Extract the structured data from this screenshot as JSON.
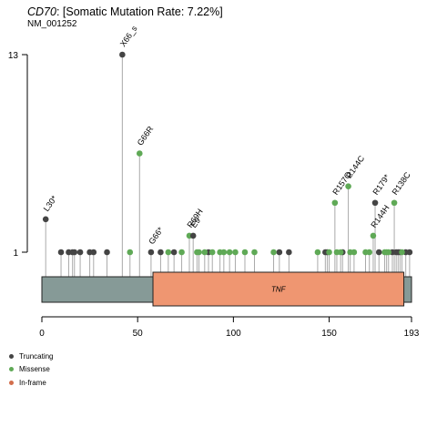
{
  "header": {
    "gene": "CD70",
    "rate_text": ": [Somatic Mutation Rate: 7.22%]",
    "transcript": "NM_001252"
  },
  "legend": [
    {
      "label": "Truncating",
      "color": "#444444"
    },
    {
      "label": "Missense",
      "color": "#5fa956"
    },
    {
      "label": "In-frame",
      "color": "#d26e4c"
    }
  ],
  "chart_data": {
    "type": "lollipop",
    "xlim": [
      0,
      193
    ],
    "x_ticks": [
      0,
      50,
      100,
      150,
      193
    ],
    "y_ticks": [
      1,
      13
    ],
    "protein_length": 193,
    "domain": {
      "name": "TNF",
      "start": 58,
      "end": 189,
      "color": "#ef9671"
    },
    "backbone_color": "#869a97",
    "colors": {
      "Truncating": "#444444",
      "Missense": "#5fa956"
    },
    "labeled": [
      {
        "pos": 2,
        "count": 3,
        "type": "Truncating",
        "label": "L30*"
      },
      {
        "pos": 42,
        "count": 13,
        "type": "Truncating",
        "label": "X66_s"
      },
      {
        "pos": 51,
        "count": 7,
        "type": "Missense",
        "label": "G66R"
      },
      {
        "pos": 57,
        "count": 1,
        "type": "Truncating",
        "label": "G66*"
      },
      {
        "pos": 77,
        "count": 2,
        "type": "Missense",
        "label": "R69H"
      },
      {
        "pos": 79,
        "count": 2,
        "type": "Truncating",
        "label": "E9"
      },
      {
        "pos": 153,
        "count": 4,
        "type": "Missense",
        "label": "R157Q"
      },
      {
        "pos": 160,
        "count": 5,
        "type": "Missense",
        "label": "R144C"
      },
      {
        "pos": 174,
        "count": 4,
        "type": "Truncating",
        "label": "R179*"
      },
      {
        "pos": 173,
        "count": 2,
        "type": "Missense",
        "label": "R144H"
      },
      {
        "pos": 184,
        "count": 4,
        "type": "Missense",
        "label": "R138C"
      }
    ],
    "truncating": [
      10,
      14,
      16,
      17,
      20,
      25,
      27,
      34,
      62,
      69,
      87,
      124,
      129,
      148,
      149,
      157,
      176,
      183,
      185,
      186,
      187,
      190,
      192
    ],
    "missense": [
      46,
      66,
      73,
      81,
      82,
      85,
      89,
      93,
      95,
      98,
      101,
      106,
      111,
      121,
      144,
      150,
      154,
      156,
      161,
      163,
      169,
      171,
      179,
      180,
      181,
      188
    ]
  }
}
